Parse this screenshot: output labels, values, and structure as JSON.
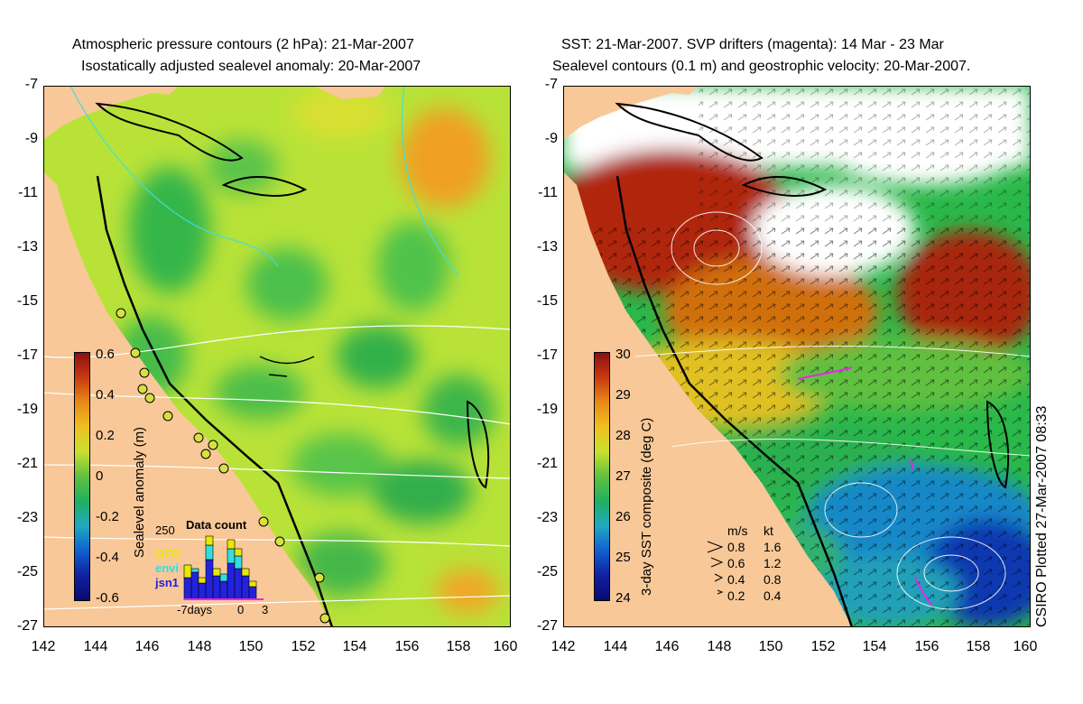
{
  "left_panel": {
    "title_line1": "Atmospheric pressure contours (2 hPa): 21-Mar-2007",
    "title_line2": "Isostatically adjusted sealevel anomaly: 20-Mar-2007",
    "colorbar": {
      "title": "Sealevel anomaly (m)",
      "ticks": [
        "0.6",
        "0.4",
        "0.2",
        "0",
        "-0.2",
        "-0.4",
        "-0.6"
      ]
    },
    "inset": {
      "title": "Data count",
      "max_label": "250",
      "x_labels": [
        "-7days",
        "0",
        "3"
      ],
      "satellites": [
        {
          "name": "GFO",
          "color": "#e8e800"
        },
        {
          "name": "envi",
          "color": "#33dddd"
        },
        {
          "name": "jsn1",
          "color": "#2222dd"
        }
      ]
    }
  },
  "right_panel": {
    "title_line1": "SST: 21-Mar-2007. SVP drifters (magenta): 14 Mar - 23 Mar",
    "title_line2": "Sealevel contours (0.1 m) and geostrophic velocity: 20-Mar-2007.",
    "colorbar": {
      "title": "3-day SST composite (deg C)",
      "ticks": [
        "30",
        "29",
        "28",
        "27",
        "26",
        "25",
        "24"
      ]
    },
    "velocity_legend": {
      "header_ms": "m/s",
      "header_kt": "kt",
      "rows": [
        {
          "ms": "0.8",
          "kt": "1.6"
        },
        {
          "ms": "0.6",
          "kt": "1.2"
        },
        {
          "ms": "0.4",
          "kt": "0.8"
        },
        {
          "ms": "0.2",
          "kt": "0.4"
        }
      ]
    },
    "credit": "CSIRO Plotted 27-Mar-2007 08:33"
  },
  "axes": {
    "lat_labels": [
      "-7",
      "-9",
      "-11",
      "-13",
      "-15",
      "-17",
      "-19",
      "-21",
      "-23",
      "-25",
      "-27"
    ],
    "lon_labels": [
      "142",
      "144",
      "146",
      "148",
      "150",
      "152",
      "154",
      "156",
      "158",
      "160"
    ]
  },
  "colors": {
    "land": "#f8c898",
    "coast": "#000000"
  }
}
